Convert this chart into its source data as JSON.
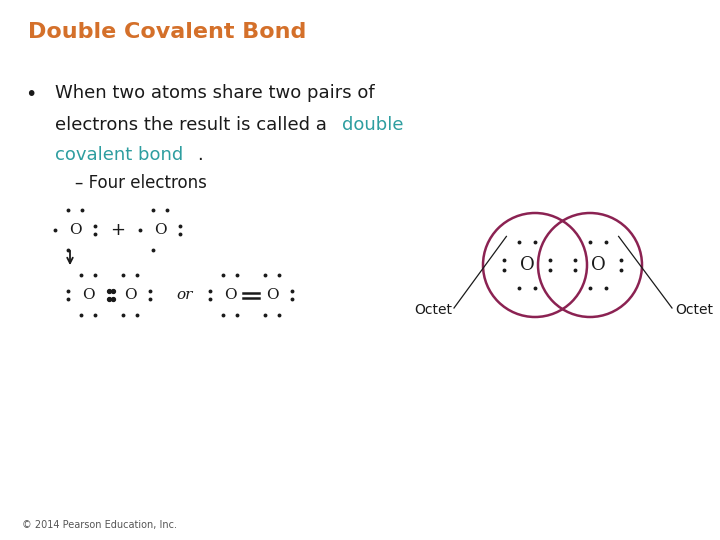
{
  "title": "Double Covalent Bond",
  "title_color": "#D4702A",
  "title_fontsize": 16,
  "bg_color": "#FFFFFF",
  "teal_color": "#2E9EA0",
  "sub_bullet": "– Four electrons",
  "copyright": "© 2014 Pearson Education, Inc.",
  "black_color": "#1a1a1a",
  "dark_red": "#8B2252",
  "gray_color": "#555555"
}
